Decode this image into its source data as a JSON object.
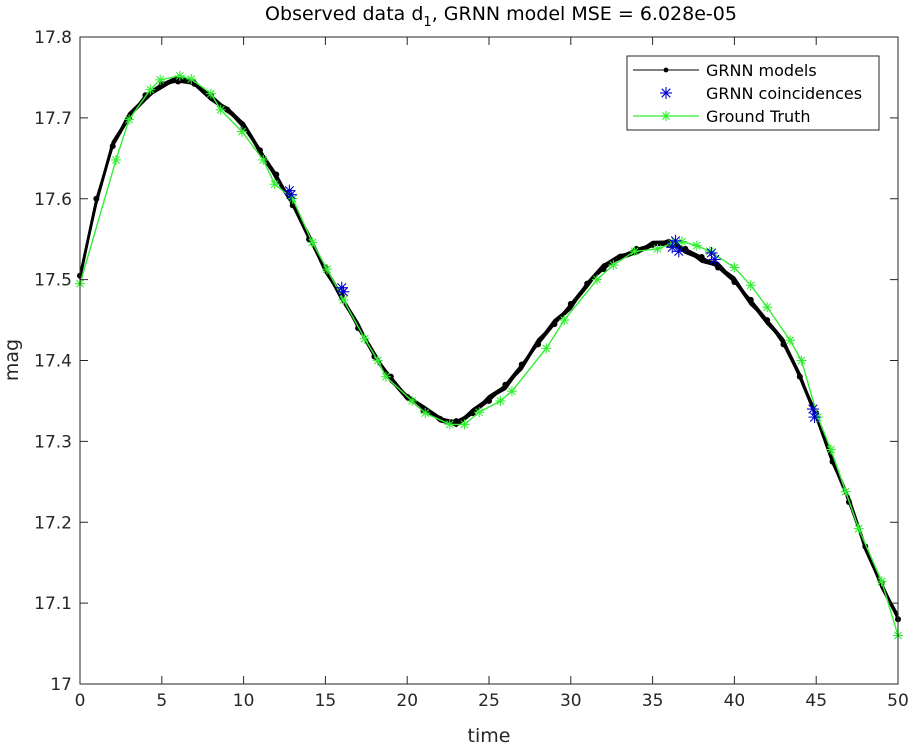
{
  "chart_data": {
    "type": "line",
    "title_main": "Observed data d",
    "title_sub": "1",
    "title_rest": ", GRNN model  MSE = 6.028e-05",
    "xlabel": "time",
    "ylabel": "mag",
    "xlim": [
      0,
      50
    ],
    "ylim": [
      17.0,
      17.8
    ],
    "xticks": [
      "0",
      "5",
      "10",
      "15",
      "20",
      "25",
      "30",
      "35",
      "40",
      "45",
      "50"
    ],
    "yticks": [
      "17",
      "17.1",
      "17.2",
      "17.3",
      "17.4",
      "17.5",
      "17.6",
      "17.7",
      "17.8"
    ],
    "grid": false,
    "legend_position": "top-right",
    "colors": {
      "models": "#000000",
      "coincidences": "#0000cc",
      "ground_truth": "#33ee33"
    },
    "series": [
      {
        "name": "GRNN models",
        "style": "black line with dot markers, many overlapping runs",
        "x": [
          0,
          1,
          2,
          3,
          4,
          5,
          6,
          7,
          8,
          9,
          10,
          11,
          12,
          13,
          14,
          15,
          16,
          17,
          18,
          19,
          20,
          21,
          22,
          23,
          24,
          25,
          26,
          27,
          28,
          29,
          30,
          31,
          32,
          33,
          34,
          35,
          36,
          37,
          38,
          39,
          40,
          41,
          42,
          43,
          44,
          45,
          46,
          47,
          48,
          49,
          50
        ],
        "y": [
          17.505,
          17.6,
          17.665,
          17.7,
          17.728,
          17.742,
          17.745,
          17.742,
          17.728,
          17.71,
          17.688,
          17.66,
          17.63,
          17.592,
          17.55,
          17.515,
          17.48,
          17.44,
          17.405,
          17.38,
          17.355,
          17.338,
          17.328,
          17.325,
          17.335,
          17.35,
          17.37,
          17.395,
          17.42,
          17.445,
          17.47,
          17.495,
          17.513,
          17.528,
          17.538,
          17.543,
          17.543,
          17.538,
          17.528,
          17.515,
          17.497,
          17.475,
          17.45,
          17.42,
          17.38,
          17.335,
          17.275,
          17.225,
          17.17,
          17.125,
          17.08
        ]
      },
      {
        "name": "GRNN coincidences",
        "style": "blue asterisks",
        "x": [
          12.8,
          12.9,
          16.0,
          16.1,
          36.2,
          36.4,
          36.6,
          38.6,
          38.8,
          44.8,
          44.9
        ],
        "y": [
          17.61,
          17.605,
          17.49,
          17.485,
          17.54,
          17.548,
          17.535,
          17.533,
          17.525,
          17.34,
          17.33
        ]
      },
      {
        "name": "Ground Truth",
        "style": "green line with asterisk markers",
        "x": [
          0,
          2.2,
          3.0,
          4.3,
          4.9,
          6.1,
          6.8,
          8.0,
          8.6,
          9.9,
          11.2,
          11.9,
          13.0,
          14.2,
          15.1,
          16.1,
          17.4,
          18.2,
          18.7,
          20.3,
          21.1,
          22.6,
          23.5,
          24.4,
          25.7,
          26.4,
          28.5,
          29.6,
          31.6,
          32.6,
          33.9,
          35.3,
          36.2,
          36.8,
          37.7,
          38.5,
          40.0,
          41.0,
          42.0,
          43.4,
          44.1,
          45.1,
          45.9,
          46.8,
          47.6,
          49.0,
          50.0
        ],
        "y": [
          17.495,
          17.648,
          17.698,
          17.735,
          17.747,
          17.752,
          17.748,
          17.73,
          17.71,
          17.683,
          17.648,
          17.618,
          17.6,
          17.546,
          17.513,
          17.475,
          17.427,
          17.4,
          17.38,
          17.35,
          17.335,
          17.321,
          17.321,
          17.336,
          17.35,
          17.362,
          17.415,
          17.45,
          17.5,
          17.518,
          17.535,
          17.538,
          17.545,
          17.547,
          17.542,
          17.535,
          17.515,
          17.493,
          17.466,
          17.425,
          17.4,
          17.33,
          17.29,
          17.238,
          17.192,
          17.127,
          17.06
        ]
      }
    ]
  }
}
